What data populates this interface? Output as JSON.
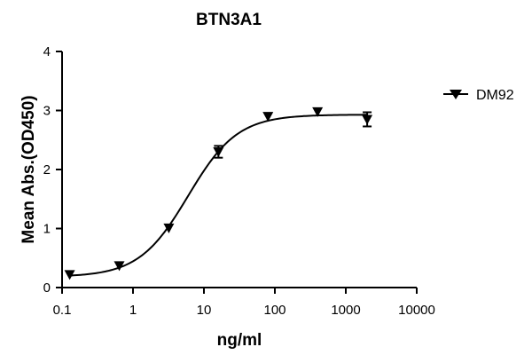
{
  "chart_data": {
    "type": "scatter",
    "title": "BTN3A1",
    "xlabel": "ng/ml",
    "ylabel": "Mean Abs.(OD450)",
    "xscale": "log",
    "xlim": [
      0.1,
      10000
    ],
    "ylim": [
      0,
      4
    ],
    "xticks": [
      "0.1",
      "1",
      "10",
      "100",
      "1000",
      "10000"
    ],
    "xtick_values": [
      0.1,
      1,
      10,
      100,
      1000,
      10000
    ],
    "yticks": [
      "0",
      "1",
      "2",
      "3",
      "4"
    ],
    "ytick_values": [
      0,
      1,
      2,
      3,
      4
    ],
    "grid": false,
    "legend_position": "right",
    "series": [
      {
        "name": "DM92",
        "color": "#000000",
        "marker": "triangle-down",
        "x": [
          0.128,
          0.64,
          3.2,
          16,
          80,
          400,
          2000
        ],
        "y": [
          0.22,
          0.37,
          1.01,
          2.3,
          2.9,
          2.98,
          2.85
        ],
        "error": [
          0,
          0,
          0,
          0.1,
          0,
          0,
          0.12
        ],
        "fit": {
          "bottom": 0.18,
          "top": 2.93,
          "ec50": 6.0,
          "hill": 1.25
        }
      }
    ]
  }
}
